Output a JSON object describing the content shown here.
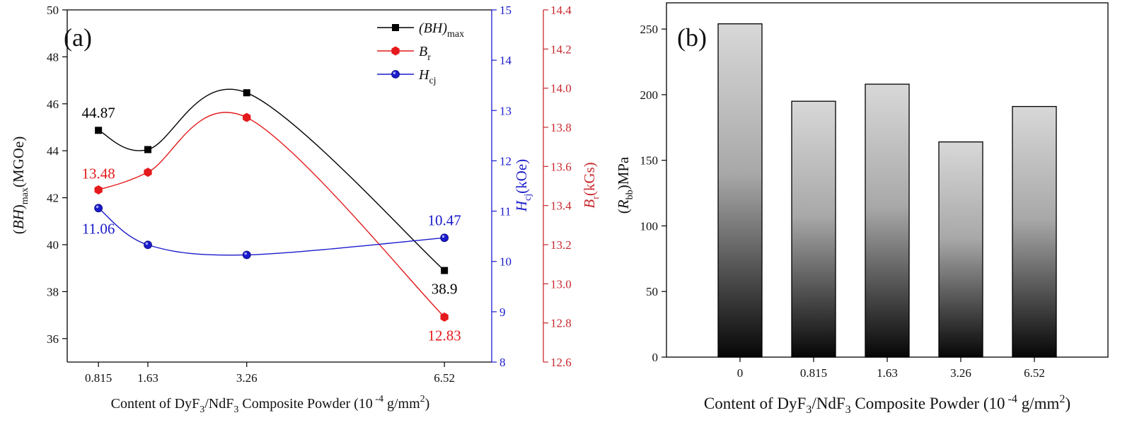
{
  "chart_data": [
    {
      "type": "line",
      "panel_label": "(a)",
      "x": [
        0.815,
        1.63,
        3.26,
        6.52
      ],
      "x_tick_labels": [
        "0.815",
        "1.63",
        "3.26",
        "6.52"
      ],
      "xlim": [
        0.3,
        7.3
      ],
      "xlabel": {
        "pre": "Content of  DyF",
        "sub1": "3",
        "mid": "/NdF",
        "sub2": "3",
        "post": " Composite Powder (10",
        "sup": " -4",
        "tail": " g/mm",
        "sup2": "2",
        "end": ")"
      },
      "series": [
        {
          "key": "bh",
          "name": {
            "base": "(BH)",
            "sub": "max"
          },
          "color": "#000000",
          "marker": "square",
          "axis": "left",
          "values": [
            44.87,
            44.05,
            46.47,
            38.9
          ],
          "point_labels": [
            "44.87",
            "",
            "",
            "38.9"
          ]
        },
        {
          "key": "br",
          "name": {
            "base": "B",
            "sub": "r"
          },
          "color": "#e41a1c",
          "marker": "hexagon",
          "axis": "right2",
          "values": [
            13.48,
            13.57,
            13.85,
            12.83
          ],
          "point_labels": [
            "13.48",
            "",
            "",
            "12.83"
          ]
        },
        {
          "key": "hcj",
          "name": {
            "base": "H",
            "sub": "cj"
          },
          "color": "#1a1acb",
          "marker": "circle",
          "axis": "right1",
          "values": [
            11.06,
            10.33,
            10.13,
            10.47
          ],
          "point_labels": [
            "11.06",
            "",
            "",
            "10.47"
          ]
        }
      ],
      "axes": {
        "left": {
          "ylim": [
            35,
            50
          ],
          "ticks": [
            "36",
            "38",
            "40",
            "42",
            "44",
            "46",
            "48",
            "50"
          ],
          "label": {
            "pre": "(",
            "italic": "BH",
            "post": ")",
            "sub": "max",
            "tail": "(MGOe)"
          },
          "color": "#000000"
        },
        "right1": {
          "ylim": [
            8,
            15
          ],
          "ticks": [
            "8",
            "9",
            "10",
            "11",
            "12",
            "13",
            "14",
            "15"
          ],
          "label": {
            "italic": "H",
            "sub": "cj",
            "tail": "(kOe)"
          },
          "color": "#1a1acb"
        },
        "right2": {
          "ylim": [
            12.6,
            14.4
          ],
          "ticks": [
            "12.6",
            "12.8",
            "13.0",
            "13.2",
            "13.4",
            "13.6",
            "13.8",
            "14.0",
            "14.2",
            "14.4"
          ],
          "label": {
            "italic": "B",
            "sub": "r",
            "tail": "(kGs)"
          },
          "color": "#c8282d"
        }
      }
    },
    {
      "type": "bar",
      "panel_label": "(b)",
      "categories": [
        "0",
        "0.815",
        "1.63",
        "3.26",
        "6.52"
      ],
      "values": [
        254,
        195,
        208,
        164,
        191
      ],
      "ylim": [
        0,
        270
      ],
      "y_ticks": [
        "0",
        "50",
        "100",
        "150",
        "200",
        "250"
      ],
      "ylabel": {
        "pre": "(",
        "italic": "R",
        "sub": "bb",
        "tail": ")MPa"
      },
      "xlabel": {
        "pre": "Content of  DyF",
        "sub1": "3",
        "mid": "/NdF",
        "sub2": "3",
        "post": " Composite Powder (10",
        "sup": " -4",
        "tail": " g/mm",
        "sup2": "2",
        "end": ")"
      }
    }
  ]
}
